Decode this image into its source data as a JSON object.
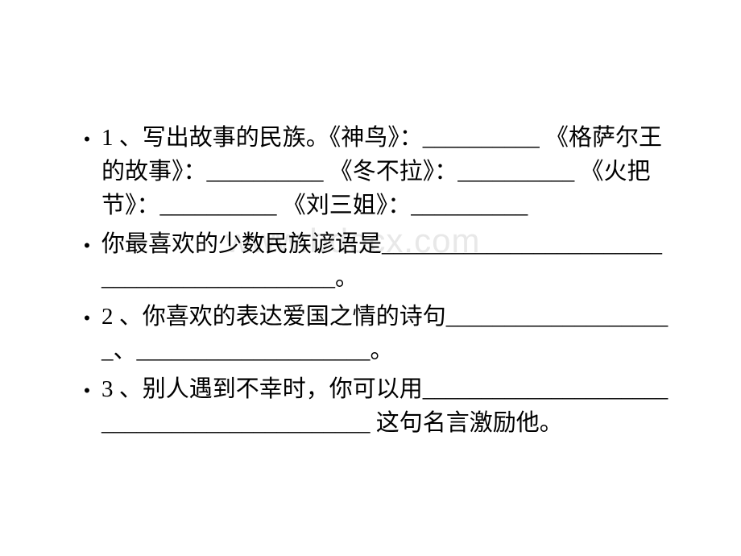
{
  "watermark": "www.bdocx.com",
  "items": [
    {
      "text": "1 、写出故事的民族。《神鸟》：__________ 《格萨尔王的故事》：__________ 《冬不拉》：__________ 《火把节》：__________ 《刘三姐》：__________"
    },
    {
      "text": "你最喜欢的少数民族谚语是____________________________________________。"
    },
    {
      "text": "2 、你喜欢的表达爱国之情的诗句____________________、____________________。"
    },
    {
      "text": "3 、别人遇到不幸时，你可以用____________________________________________ 这句名言激励他。"
    }
  ],
  "bullet_char": "•",
  "colors": {
    "background": "#ffffff",
    "text": "#000000",
    "watermark": "#e8e8e8"
  },
  "font_sizes": {
    "body": 29,
    "watermark": 42,
    "bullet": 22
  }
}
